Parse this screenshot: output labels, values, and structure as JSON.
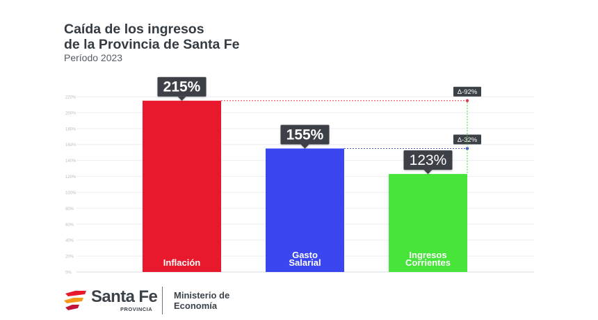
{
  "header": {
    "title_line1": "Caída de los ingresos",
    "title_line2": "de la Provincia de Santa Fe",
    "subtitle": "Período 2023"
  },
  "chart_data": {
    "type": "bar",
    "categories": [
      [
        "Inflación"
      ],
      [
        "Gasto",
        "Salarial"
      ],
      [
        "Ingresos",
        "Corrientes"
      ]
    ],
    "values": [
      215,
      155,
      123
    ],
    "value_labels": [
      "215%",
      "155%",
      "123%"
    ],
    "colors": [
      "#e8192c",
      "#3a46f0",
      "#47e43a"
    ],
    "ylim": [
      0,
      220
    ],
    "yticks": [
      0,
      20,
      40,
      60,
      80,
      100,
      120,
      140,
      160,
      180,
      200,
      220
    ],
    "ytick_labels": [
      "0%",
      "20%",
      "40%",
      "60%",
      "80%",
      "100%",
      "120%",
      "140%",
      "160%",
      "180%",
      "200%",
      "220%"
    ],
    "grid": true,
    "annotations": [
      {
        "label": "Δ-92%",
        "from_value": 215,
        "to_category": 2,
        "color": "#e23a4a"
      },
      {
        "label": "Δ-32%",
        "from_value": 155,
        "to_category": 2,
        "color": "#4556d6"
      }
    ]
  },
  "footer": {
    "brand": "Santa Fe",
    "brand_sub": "PROVINCIA",
    "ministry_line1": "Ministerio de",
    "ministry_line2": "Economía",
    "logo_colors": [
      "#e8192c",
      "#f39a1a",
      "#c2143a"
    ]
  }
}
